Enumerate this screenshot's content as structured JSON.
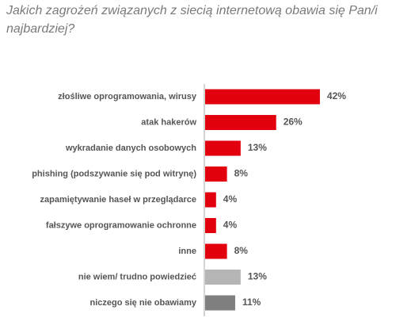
{
  "chart_data": {
    "type": "bar",
    "orientation": "horizontal",
    "title": "Jakich zagrożeń związanych z siecią internetową obawia się Pan/i najbardziej?",
    "categories": [
      "złośliwe oprogramowania, wirusy",
      "atak hakerów",
      "wykradanie danych osobowych",
      "phishing (podszywanie się pod witrynę)",
      "zapamiętywanie haseł w przeglądarce",
      "fałszywe oprogramowanie ochronne",
      "inne",
      "nie wiem/ trudno powiedzieć",
      "niczego się nie obawiamy"
    ],
    "values": [
      42,
      26,
      13,
      8,
      4,
      4,
      8,
      13,
      11
    ],
    "value_labels": [
      "42%",
      "26%",
      "13%",
      "8%",
      "4%",
      "4%",
      "8%",
      "13%",
      "11%"
    ],
    "colors": [
      "#e2000f",
      "#e2000f",
      "#e2000f",
      "#e2000f",
      "#e2000f",
      "#e2000f",
      "#e2000f",
      "#b5b5b5",
      "#7f7f7f"
    ]
  }
}
